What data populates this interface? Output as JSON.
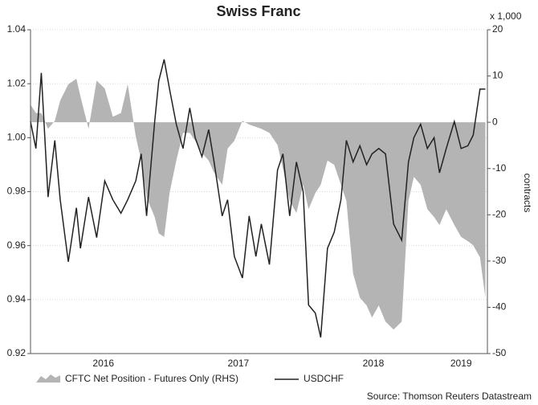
{
  "chart_data": {
    "type": "line",
    "title": "Swiss Franc",
    "y2_unit_label": "x 1,000",
    "y2_label": "contracts",
    "source": "Source: Thomson Reuters Datastream",
    "x": [
      2015.96,
      2016.0,
      2016.04,
      2016.09,
      2016.14,
      2016.18,
      2016.24,
      2016.3,
      2016.33,
      2016.39,
      2016.45,
      2016.51,
      2016.57,
      2016.63,
      2016.68,
      2016.74,
      2016.78,
      2016.82,
      2016.88,
      2016.91,
      2016.95,
      2016.99,
      2017.04,
      2017.09,
      2017.14,
      2017.18,
      2017.23,
      2017.28,
      2017.32,
      2017.38,
      2017.42,
      2017.47,
      2017.53,
      2017.58,
      2017.63,
      2017.67,
      2017.73,
      2017.79,
      2017.83,
      2017.88,
      2017.93,
      2017.98,
      2018.02,
      2018.07,
      2018.11,
      2018.16,
      2018.21,
      2018.26,
      2018.3,
      2018.35,
      2018.4,
      2018.45,
      2018.49,
      2018.54,
      2018.59,
      2018.65,
      2018.71,
      2018.76,
      2018.8,
      2018.85,
      2018.9,
      2018.95,
      2018.99,
      2019.04,
      2019.1,
      2019.15,
      2019.2,
      2019.24,
      2019.29,
      2019.33
    ],
    "series": [
      {
        "name": "CFTC Net Position - Futures Only (RHS)",
        "type": "area",
        "axis": "y2",
        "color": "#b4b4b4",
        "values": [
          3.8,
          2,
          2,
          -1.4,
          0.3,
          4.7,
          8.2,
          9.4,
          5.6,
          -1.4,
          9,
          7.3,
          1.2,
          2,
          8.2,
          -3.1,
          -8.3,
          -16.2,
          -20.5,
          -24,
          -24.8,
          -15.3,
          -8.3,
          -2.3,
          -2.3,
          -4,
          -6.6,
          -8.3,
          -10.9,
          -13.5,
          -5.7,
          -4,
          0.3,
          -0.5,
          -1,
          -1.4,
          -2.3,
          -4.9,
          -10,
          -17,
          -19.6,
          -13.5,
          -18.8,
          -15.3,
          -13.5,
          -8.3,
          -9.2,
          -13.5,
          -17,
          -32.7,
          -37.9,
          -39.6,
          -42.2,
          -39.6,
          -43.1,
          -44.8,
          -43.1,
          -17,
          -11.8,
          -13.5,
          -18.8,
          -20.5,
          -22.2,
          -18.8,
          -22.2,
          -24.8,
          -25.7,
          -26.6,
          -29.2,
          -37.9
        ]
      },
      {
        "name": "USDCHF",
        "type": "line",
        "color": "#222222",
        "values": [
          1.006,
          0.996,
          1.024,
          0.978,
          0.999,
          0.977,
          0.954,
          0.974,
          0.959,
          0.978,
          0.963,
          0.984,
          0.977,
          0.972,
          0.977,
          0.984,
          0.994,
          0.971,
          1.006,
          1.021,
          1.029,
          1.018,
          1.005,
          0.996,
          1.011,
          1.0,
          0.993,
          1.003,
          0.991,
          0.971,
          0.977,
          0.956,
          0.948,
          0.971,
          0.956,
          0.968,
          0.953,
          0.988,
          0.994,
          0.971,
          0.991,
          0.98,
          0.938,
          0.935,
          0.926,
          0.959,
          0.965,
          0.977,
          0.999,
          0.991,
          0.997,
          0.99,
          0.994,
          0.996,
          0.994,
          0.968,
          0.962,
          0.991,
          1.0,
          1.005,
          0.996,
          1.0,
          0.987,
          0.996,
          1.006,
          0.996,
          0.997,
          1.001,
          1.018,
          1.018
        ]
      }
    ],
    "xlim": [
      2015.96,
      2019.345
    ],
    "xticks": [
      {
        "value": 2016.5,
        "label": "2016"
      },
      {
        "value": 2017.5,
        "label": "2017"
      },
      {
        "value": 2018.5,
        "label": "2018"
      },
      {
        "value": 2019.15,
        "label": "2019"
      }
    ],
    "ylim": [
      0.92,
      1.04
    ],
    "yticks": [
      0.92,
      0.94,
      0.96,
      0.98,
      {
        "value": 1,
        "label": "1.00"
      },
      1.02,
      1.04
    ],
    "y2lim": [
      -50,
      20
    ],
    "y2ticks": [
      -50,
      -40,
      -30,
      -20,
      -10,
      0,
      10,
      20
    ],
    "grid": true
  }
}
